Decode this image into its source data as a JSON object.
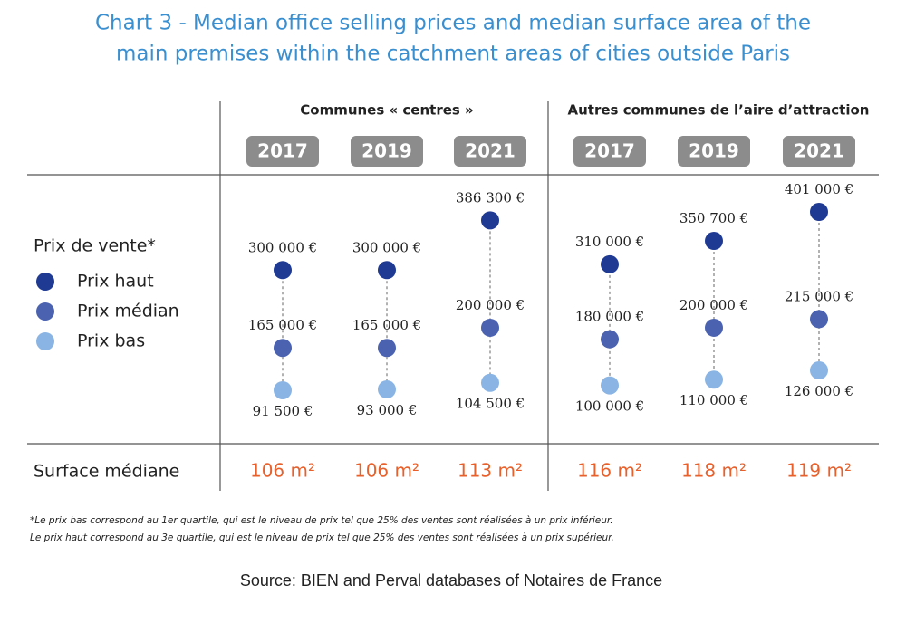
{
  "chart_data": {
    "type": "dot",
    "title": [
      "Chart 3 - Median office selling prices and median surface area of the",
      "main premises within the catchment areas of cities outside Paris"
    ],
    "groups": [
      "Communes « centres »",
      "Autres communes de l’aire d’attraction"
    ],
    "categories": [
      "2017",
      "2019",
      "2021",
      "2017",
      "2019",
      "2021"
    ],
    "legend_title": "Prix de vente*",
    "series": [
      {
        "name": "Prix haut",
        "color": "#1f3a93",
        "values": [
          300000,
          300000,
          386300,
          310000,
          350700,
          401000
        ],
        "value_labels": [
          "300 000 €",
          "300 000 €",
          "386 300 €",
          "310 000 €",
          "350 700 €",
          "401 000 €"
        ]
      },
      {
        "name": "Prix médian",
        "color": "#4a62b0",
        "values": [
          165000,
          165000,
          200000,
          180000,
          200000,
          215000
        ],
        "value_labels": [
          "165 000 €",
          "165 000 €",
          "200 000 €",
          "180 000 €",
          "200 000 €",
          "215 000 €"
        ]
      },
      {
        "name": "Prix bas",
        "color": "#8ab4e3",
        "values": [
          91500,
          93000,
          104500,
          100000,
          110000,
          126000
        ],
        "value_labels": [
          "91 500 €",
          "93 000 €",
          "104 500 €",
          "100 000 €",
          "110 000 €",
          "126 000 €"
        ]
      }
    ],
    "surface": {
      "label": "Surface médiane",
      "color": "#e8612c",
      "values": [
        106,
        106,
        113,
        116,
        118,
        119
      ],
      "value_labels": [
        "106 m²",
        "106 m²",
        "113 m²",
        "116 m²",
        "118 m²",
        "119 m²"
      ]
    },
    "notes": [
      "*Le prix bas correspond au 1er quartile, qui est le niveau de prix tel que 25% des ventes sont réalisées à un prix inférieur.",
      "Le prix haut correspond au 3e quartile, qui est le niveau de prix tel que 25% des ventes sont réalisées à un prix supérieur."
    ],
    "source": "Source: BIEN and Perval databases of Notaires de France"
  }
}
